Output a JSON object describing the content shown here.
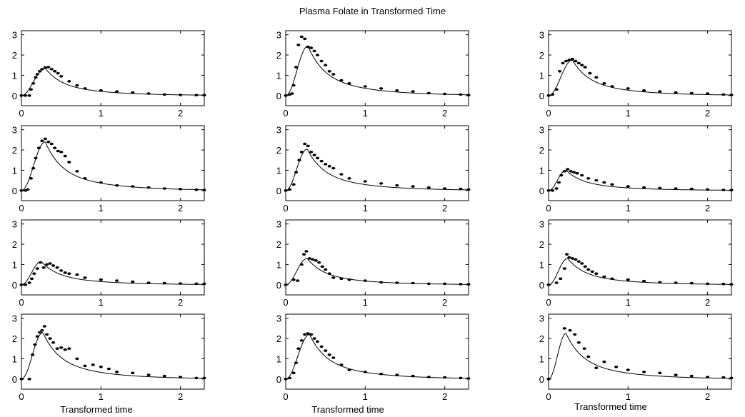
{
  "title": "Plasma Folate in Transformed Time",
  "chart_data": {
    "type": "scatter",
    "title": "Plasma Folate in Transformed Time",
    "layout": "4 rows x 3 columns",
    "xlabel": "Transformed time",
    "ylabel": "",
    "xlim": [
      0,
      2.3
    ],
    "ylim": [
      -0.5,
      3.2
    ],
    "xticks": [
      0,
      1,
      2
    ],
    "yticks": [
      0,
      1,
      2,
      3
    ],
    "grid": false,
    "panels": [
      {
        "peak_x": 0.3,
        "peak_y": 1.35,
        "points": [
          [
            0,
            0
          ],
          [
            0.05,
            0
          ],
          [
            0.1,
            0
          ],
          [
            0.12,
            0.3
          ],
          [
            0.15,
            0.6
          ],
          [
            0.18,
            0.9
          ],
          [
            0.2,
            1.05
          ],
          [
            0.23,
            1.2
          ],
          [
            0.26,
            1.3
          ],
          [
            0.3,
            1.38
          ],
          [
            0.34,
            1.4
          ],
          [
            0.38,
            1.3
          ],
          [
            0.42,
            1.2
          ],
          [
            0.46,
            1.1
          ],
          [
            0.5,
            0.95
          ],
          [
            0.6,
            0.7
          ],
          [
            0.7,
            0.5
          ],
          [
            0.8,
            0.35
          ],
          [
            1.0,
            0.25
          ],
          [
            1.2,
            0.2
          ],
          [
            1.4,
            0.15
          ],
          [
            1.6,
            0.1
          ],
          [
            1.8,
            0.05
          ],
          [
            2.0,
            0.03
          ],
          [
            2.2,
            0.02
          ],
          [
            2.3,
            0.02
          ]
        ]
      },
      {
        "peak_x": 0.28,
        "peak_y": 2.45,
        "points": [
          [
            0,
            0
          ],
          [
            0.05,
            0.05
          ],
          [
            0.08,
            0.1
          ],
          [
            0.1,
            0.5
          ],
          [
            0.13,
            1.4
          ],
          [
            0.16,
            2.5
          ],
          [
            0.2,
            2.9
          ],
          [
            0.24,
            2.8
          ],
          [
            0.28,
            2.4
          ],
          [
            0.32,
            2.35
          ],
          [
            0.36,
            2.2
          ],
          [
            0.4,
            2.0
          ],
          [
            0.45,
            1.7
          ],
          [
            0.5,
            1.5
          ],
          [
            0.55,
            1.2
          ],
          [
            0.6,
            1.05
          ],
          [
            0.7,
            0.75
          ],
          [
            0.8,
            0.6
          ],
          [
            1.0,
            0.45
          ],
          [
            1.2,
            0.35
          ],
          [
            1.4,
            0.25
          ],
          [
            1.6,
            0.2
          ],
          [
            1.8,
            0.12
          ],
          [
            2.0,
            0.08
          ],
          [
            2.2,
            0.05
          ],
          [
            2.3,
            0.02
          ]
        ]
      },
      {
        "peak_x": 0.3,
        "peak_y": 1.75,
        "points": [
          [
            0,
            0
          ],
          [
            0.05,
            0.05
          ],
          [
            0.1,
            0.3
          ],
          [
            0.14,
            1.2
          ],
          [
            0.18,
            1.6
          ],
          [
            0.22,
            1.7
          ],
          [
            0.26,
            1.75
          ],
          [
            0.3,
            1.8
          ],
          [
            0.34,
            1.7
          ],
          [
            0.38,
            1.6
          ],
          [
            0.42,
            1.5
          ],
          [
            0.46,
            1.4
          ],
          [
            0.52,
            1.1
          ],
          [
            0.6,
            0.9
          ],
          [
            0.7,
            0.6
          ],
          [
            0.8,
            0.45
          ],
          [
            1.0,
            0.35
          ],
          [
            1.2,
            0.25
          ],
          [
            1.4,
            0.2
          ],
          [
            1.6,
            0.15
          ],
          [
            1.8,
            0.12
          ],
          [
            2.0,
            0.1
          ],
          [
            2.2,
            0.05
          ],
          [
            2.3,
            0.03
          ]
        ]
      },
      {
        "peak_x": 0.3,
        "peak_y": 2.4,
        "points": [
          [
            0,
            0
          ],
          [
            0.05,
            0
          ],
          [
            0.08,
            0.05
          ],
          [
            0.12,
            0.6
          ],
          [
            0.15,
            1.1
          ],
          [
            0.18,
            1.6
          ],
          [
            0.22,
            2.1
          ],
          [
            0.26,
            2.45
          ],
          [
            0.3,
            2.55
          ],
          [
            0.34,
            2.4
          ],
          [
            0.38,
            2.3
          ],
          [
            0.42,
            2.1
          ],
          [
            0.46,
            1.95
          ],
          [
            0.5,
            1.9
          ],
          [
            0.55,
            1.7
          ],
          [
            0.6,
            1.4
          ],
          [
            0.7,
            0.95
          ],
          [
            0.8,
            0.6
          ],
          [
            1.0,
            0.4
          ],
          [
            1.2,
            0.25
          ],
          [
            1.4,
            0.2
          ],
          [
            1.6,
            0.15
          ],
          [
            1.8,
            0.1
          ],
          [
            2.0,
            0.07
          ],
          [
            2.2,
            0.04
          ],
          [
            2.3,
            0.02
          ]
        ]
      },
      {
        "peak_x": 0.27,
        "peak_y": 2.05,
        "points": [
          [
            0,
            0
          ],
          [
            0.05,
            0.05
          ],
          [
            0.1,
            0.3
          ],
          [
            0.13,
            0.9
          ],
          [
            0.17,
            1.5
          ],
          [
            0.2,
            1.9
          ],
          [
            0.24,
            2.3
          ],
          [
            0.28,
            2.2
          ],
          [
            0.32,
            1.9
          ],
          [
            0.36,
            1.75
          ],
          [
            0.4,
            1.6
          ],
          [
            0.45,
            1.45
          ],
          [
            0.5,
            1.3
          ],
          [
            0.55,
            1.2
          ],
          [
            0.6,
            1.1
          ],
          [
            0.7,
            0.8
          ],
          [
            0.8,
            0.6
          ],
          [
            1.0,
            0.45
          ],
          [
            1.2,
            0.35
          ],
          [
            1.4,
            0.25
          ],
          [
            1.6,
            0.2
          ],
          [
            1.8,
            0.15
          ],
          [
            2.0,
            0.1
          ],
          [
            2.2,
            0.08
          ],
          [
            2.3,
            0.05
          ]
        ]
      },
      {
        "peak_x": 0.22,
        "peak_y": 1.0,
        "points": [
          [
            0,
            0
          ],
          [
            0.05,
            0
          ],
          [
            0.1,
            0.1
          ],
          [
            0.13,
            0.4
          ],
          [
            0.16,
            0.75
          ],
          [
            0.2,
            0.95
          ],
          [
            0.24,
            1.05
          ],
          [
            0.28,
            0.95
          ],
          [
            0.32,
            0.9
          ],
          [
            0.36,
            0.85
          ],
          [
            0.42,
            0.75
          ],
          [
            0.5,
            0.6
          ],
          [
            0.6,
            0.5
          ],
          [
            0.7,
            0.4
          ],
          [
            0.8,
            0.3
          ],
          [
            1.0,
            0.2
          ],
          [
            1.2,
            0.15
          ],
          [
            1.4,
            0.12
          ],
          [
            1.6,
            0.1
          ],
          [
            1.8,
            0.08
          ],
          [
            2.0,
            0.05
          ],
          [
            2.2,
            0.03
          ],
          [
            2.3,
            0.02
          ]
        ]
      },
      {
        "peak_x": 0.25,
        "peak_y": 1.15,
        "points": [
          [
            0,
            0
          ],
          [
            0.05,
            0
          ],
          [
            0.1,
            0.1
          ],
          [
            0.13,
            0.3
          ],
          [
            0.16,
            0.55
          ],
          [
            0.2,
            0.8
          ],
          [
            0.24,
            1.1
          ],
          [
            0.28,
            0.85
          ],
          [
            0.32,
            1.0
          ],
          [
            0.36,
            1.05
          ],
          [
            0.4,
            0.95
          ],
          [
            0.45,
            0.85
          ],
          [
            0.5,
            0.7
          ],
          [
            0.55,
            0.6
          ],
          [
            0.6,
            0.55
          ],
          [
            0.7,
            0.5
          ],
          [
            0.8,
            0.35
          ],
          [
            1.0,
            0.25
          ],
          [
            1.2,
            0.2
          ],
          [
            1.4,
            0.15
          ],
          [
            1.6,
            0.1
          ],
          [
            1.8,
            0.08
          ],
          [
            2.0,
            0.06
          ],
          [
            2.2,
            0.05
          ],
          [
            2.3,
            0.05
          ]
        ]
      },
      {
        "peak_x": 0.27,
        "peak_y": 1.3,
        "points": [
          [
            0,
            0
          ],
          [
            0.1,
            0.25
          ],
          [
            0.15,
            0.2
          ],
          [
            0.2,
            1.0
          ],
          [
            0.23,
            1.5
          ],
          [
            0.26,
            1.65
          ],
          [
            0.3,
            1.3
          ],
          [
            0.34,
            1.25
          ],
          [
            0.38,
            1.2
          ],
          [
            0.42,
            1.1
          ],
          [
            0.46,
            0.9
          ],
          [
            0.5,
            0.75
          ],
          [
            0.55,
            0.55
          ],
          [
            0.6,
            0.35
          ],
          [
            0.7,
            0.3
          ],
          [
            0.8,
            0.25
          ],
          [
            1.0,
            0.2
          ],
          [
            1.2,
            0.12
          ],
          [
            1.4,
            0.1
          ],
          [
            1.6,
            0.08
          ],
          [
            1.8,
            0.05
          ],
          [
            2.0,
            0.05
          ],
          [
            2.2,
            0.03
          ],
          [
            2.3,
            0.02
          ]
        ]
      },
      {
        "peak_x": 0.24,
        "peak_y": 1.3,
        "points": [
          [
            0,
            0
          ],
          [
            0.1,
            0.1
          ],
          [
            0.15,
            0.3
          ],
          [
            0.2,
            0.8
          ],
          [
            0.23,
            1.5
          ],
          [
            0.26,
            1.35
          ],
          [
            0.3,
            1.3
          ],
          [
            0.34,
            1.25
          ],
          [
            0.38,
            1.15
          ],
          [
            0.42,
            1.05
          ],
          [
            0.46,
            0.9
          ],
          [
            0.5,
            0.75
          ],
          [
            0.55,
            0.65
          ],
          [
            0.6,
            0.55
          ],
          [
            0.7,
            0.4
          ],
          [
            0.8,
            0.3
          ],
          [
            1.0,
            0.25
          ],
          [
            1.2,
            0.18
          ],
          [
            1.4,
            0.12
          ],
          [
            1.6,
            0.1
          ],
          [
            1.8,
            0.08
          ],
          [
            2.0,
            0.05
          ],
          [
            2.2,
            0.04
          ],
          [
            2.3,
            0.02
          ]
        ]
      },
      {
        "peak_x": 0.27,
        "peak_y": 2.3,
        "points": [
          [
            0,
            0
          ],
          [
            0.1,
            0
          ],
          [
            0.14,
            1.2
          ],
          [
            0.17,
            1.7
          ],
          [
            0.2,
            2.1
          ],
          [
            0.23,
            2.3
          ],
          [
            0.26,
            2.4
          ],
          [
            0.29,
            2.6
          ],
          [
            0.32,
            2.2
          ],
          [
            0.36,
            2.0
          ],
          [
            0.4,
            1.8
          ],
          [
            0.45,
            1.5
          ],
          [
            0.5,
            1.55
          ],
          [
            0.55,
            1.45
          ],
          [
            0.6,
            1.5
          ],
          [
            0.7,
            1.0
          ],
          [
            0.8,
            0.65
          ],
          [
            0.9,
            0.7
          ],
          [
            1.0,
            0.6
          ],
          [
            1.1,
            0.5
          ],
          [
            1.2,
            0.35
          ],
          [
            1.4,
            0.3
          ],
          [
            1.6,
            0.2
          ],
          [
            1.8,
            0.15
          ],
          [
            2.0,
            0.1
          ],
          [
            2.2,
            0.05
          ],
          [
            2.3,
            0.05
          ]
        ]
      },
      {
        "peak_x": 0.3,
        "peak_y": 2.2,
        "points": [
          [
            0,
            0
          ],
          [
            0.05,
            0.05
          ],
          [
            0.1,
            0.3
          ],
          [
            0.13,
            0.8
          ],
          [
            0.16,
            1.5
          ],
          [
            0.2,
            1.9
          ],
          [
            0.24,
            2.2
          ],
          [
            0.28,
            2.25
          ],
          [
            0.32,
            2.2
          ],
          [
            0.36,
            2.0
          ],
          [
            0.4,
            1.85
          ],
          [
            0.45,
            1.6
          ],
          [
            0.5,
            1.4
          ],
          [
            0.55,
            1.2
          ],
          [
            0.6,
            1.05
          ],
          [
            0.7,
            0.7
          ],
          [
            0.8,
            0.45
          ],
          [
            1.0,
            0.35
          ],
          [
            1.2,
            0.25
          ],
          [
            1.4,
            0.2
          ],
          [
            1.6,
            0.15
          ],
          [
            1.8,
            0.1
          ],
          [
            2.0,
            0.08
          ],
          [
            2.2,
            0.05
          ],
          [
            2.3,
            0.03
          ]
        ]
      },
      {
        "peak_x": 0.22,
        "peak_y": 2.25,
        "points": [
          [
            0,
            0
          ],
          [
            0.2,
            2.5
          ],
          [
            0.27,
            2.4
          ],
          [
            0.33,
            2.2
          ],
          [
            0.38,
            1.8
          ],
          [
            0.45,
            1.5
          ],
          [
            0.5,
            1.1
          ],
          [
            0.6,
            0.55
          ],
          [
            0.7,
            0.85
          ],
          [
            0.85,
            0.6
          ],
          [
            1.0,
            0.45
          ],
          [
            1.2,
            0.35
          ],
          [
            1.4,
            0.3
          ],
          [
            1.6,
            0.2
          ],
          [
            1.8,
            0.15
          ],
          [
            2.0,
            0.1
          ],
          [
            2.2,
            0.08
          ],
          [
            2.3,
            0.05
          ]
        ]
      }
    ]
  }
}
